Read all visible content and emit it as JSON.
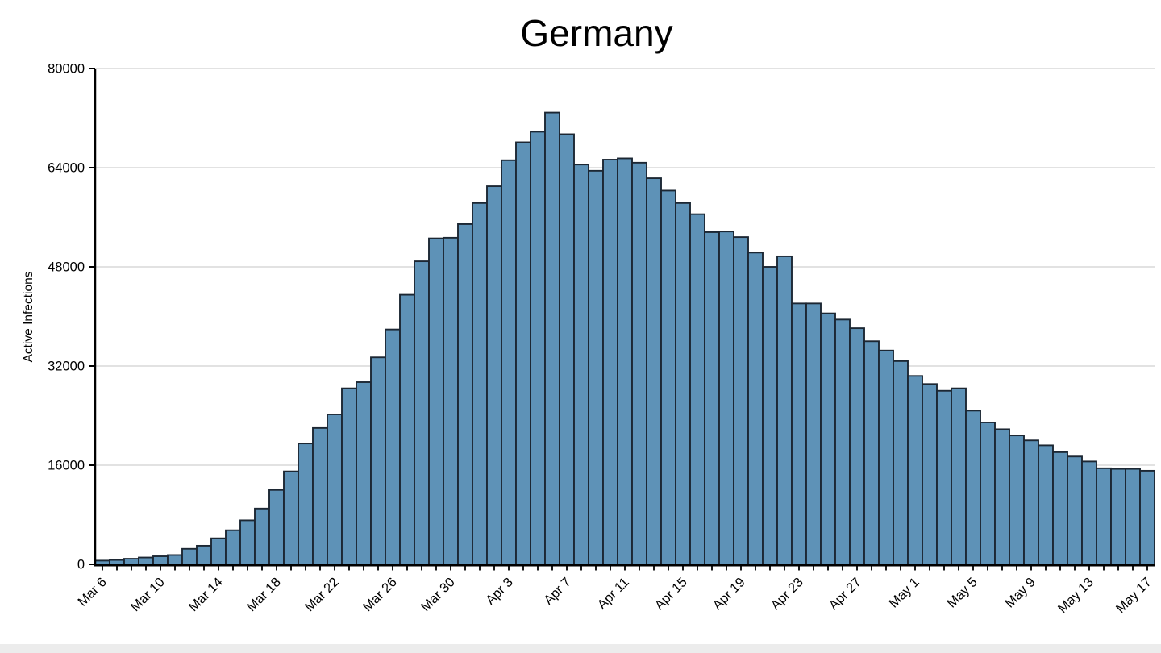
{
  "chart_data": {
    "type": "bar",
    "title": "Germany",
    "ylabel": "Active Infections",
    "xlabel": "",
    "categories": [
      "Mar 6",
      "Mar 7",
      "Mar 8",
      "Mar 9",
      "Mar 10",
      "Mar 11",
      "Mar 12",
      "Mar 13",
      "Mar 14",
      "Mar 15",
      "Mar 16",
      "Mar 17",
      "Mar 18",
      "Mar 19",
      "Mar 20",
      "Mar 21",
      "Mar 22",
      "Mar 23",
      "Mar 24",
      "Mar 25",
      "Mar 26",
      "Mar 27",
      "Mar 28",
      "Mar 29",
      "Mar 30",
      "Mar 31",
      "Apr 1",
      "Apr 2",
      "Apr 3",
      "Apr 4",
      "Apr 5",
      "Apr 6",
      "Apr 7",
      "Apr 8",
      "Apr 9",
      "Apr 10",
      "Apr 11",
      "Apr 12",
      "Apr 13",
      "Apr 14",
      "Apr 15",
      "Apr 16",
      "Apr 17",
      "Apr 18",
      "Apr 19",
      "Apr 20",
      "Apr 21",
      "Apr 22",
      "Apr 23",
      "Apr 24",
      "Apr 25",
      "Apr 26",
      "Apr 27",
      "Apr 28",
      "Apr 29",
      "Apr 30",
      "May 1",
      "May 2",
      "May 3",
      "May 4",
      "May 5",
      "May 6",
      "May 7",
      "May 8",
      "May 9",
      "May 10",
      "May 11",
      "May 12",
      "May 13",
      "May 14",
      "May 15",
      "May 16",
      "May 17"
    ],
    "values": [
      600,
      700,
      900,
      1100,
      1300,
      1500,
      2500,
      3000,
      4200,
      5500,
      7100,
      9000,
      12000,
      15000,
      19500,
      22000,
      24200,
      28400,
      29400,
      33400,
      37900,
      43500,
      48900,
      52600,
      52700,
      54900,
      58300,
      61000,
      65200,
      68100,
      69800,
      72900,
      69400,
      64500,
      63500,
      65300,
      65500,
      64800,
      62300,
      60300,
      58300,
      56500,
      53600,
      53700,
      52800,
      50300,
      48000,
      49700,
      42100,
      42100,
      40500,
      39500,
      38100,
      36000,
      34500,
      32800,
      30400,
      29100,
      28000,
      28400,
      24800,
      22900,
      21800,
      20800,
      20000,
      19200,
      18100,
      17400,
      16600,
      15500,
      15400,
      15400,
      15100
    ],
    "x_tick_labels": [
      "Mar 6",
      "Mar 10",
      "Mar 14",
      "Mar 18",
      "Mar 22",
      "Mar 26",
      "Mar 30",
      "Apr 3",
      "Apr 7",
      "Apr 11",
      "Apr 15",
      "Apr 19",
      "Apr 23",
      "Apr 27",
      "May 1",
      "May 5",
      "May 9",
      "May 13",
      "May 17"
    ],
    "x_tick_label_every": 4,
    "yticks": [
      0,
      16000,
      32000,
      48000,
      64000,
      80000
    ],
    "ytick_labels": [
      "0",
      "16000",
      "32000",
      "48000",
      "64000",
      "80000"
    ],
    "ylim": [
      0,
      80000
    ],
    "grid": "horizontal",
    "legend": "none",
    "x_label_rotation_deg": -45,
    "bar_fill": "#5e92b7",
    "bar_stroke": "#1c2733",
    "gridline_color": "#d8d8d8",
    "axis_color": "#000000",
    "text_color": "#000000"
  }
}
